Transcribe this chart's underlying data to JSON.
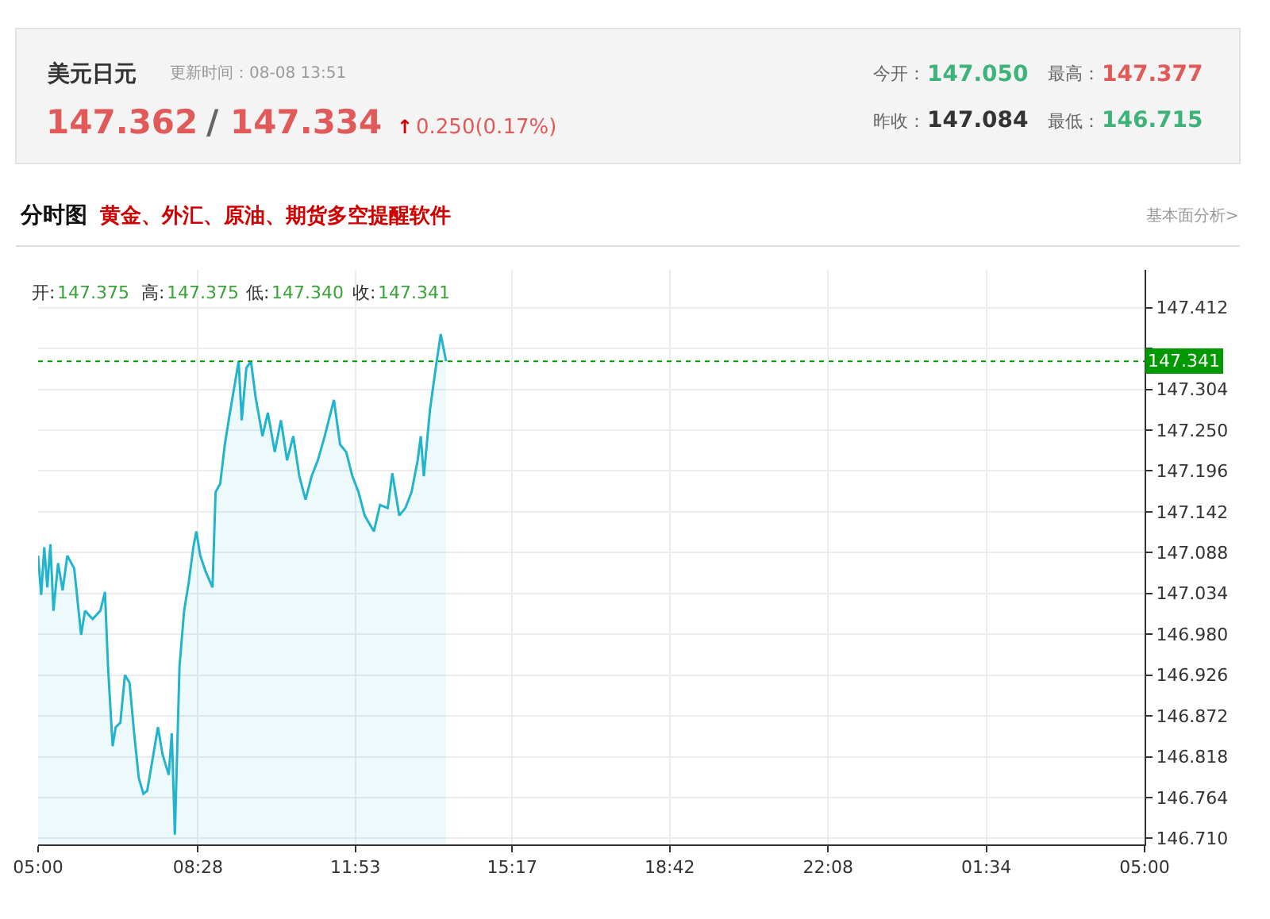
{
  "chart_data": {
    "type": "area",
    "title": "美元日元",
    "subtitle": "更新时间：08-08 13:51",
    "annotations": [
      "147.362",
      "/",
      "147.334",
      "↑",
      "0.250(0.17%)",
      "今开：",
      "147.050",
      "最高：",
      "147.377",
      "昨收：",
      "147.084",
      "最低：",
      "146.715",
      "分时图",
      "黄金、外汇、原油、期货多空提醒软件",
      "基本面分析>",
      "开:",
      "147.375",
      "高:",
      "147.375",
      "低:",
      "147.340",
      "收:",
      "147.341"
    ],
    "series": [
      {
        "color": "#22b4cc",
        "x": [
          "--08-08T05:00",
          "--08-08T05:04",
          "--08-08T05:08",
          "--08-08T05:12",
          "--08-08T05:16",
          "--08-08T05:20",
          "--08-08T05:26",
          "--08-08T05:32",
          "--08-08T05:38",
          "--08-08T05:47",
          "--08-08T05:56",
          "--08-08T06:01",
          "--08-08T06:11",
          "--08-08T06:21",
          "--08-08T06:27",
          "--08-08T06:31",
          "--08-08T06:37",
          "--08-08T06:41",
          "--08-08T06:47",
          "--08-08T06:53",
          "--08-08T06:59",
          "--08-08T07:05",
          "--08-08T07:11",
          "--08-08T07:17",
          "--08-08T07:22",
          "--08-08T07:30",
          "--08-08T07:36",
          "--08-08T07:42",
          "--08-08T07:50",
          "--08-08T07:54",
          "--08-08T07:58",
          "--08-08T08:04",
          "--08-08T08:10",
          "--08-08T08:16",
          "--08-08T08:22",
          "--08-08T08:26",
          "--08-08T08:31",
          "--08-08T08:38",
          "--08-08T08:47",
          "--08-08T08:51",
          "--08-08T08:57",
          "--08-08T09:03",
          "--08-08T09:09",
          "--08-08T09:21",
          "--08-08T09:25",
          "--08-08T09:31",
          "--08-08T09:37",
          "--08-08T09:43",
          "--08-08T09:52",
          "--08-08T09:59",
          "--08-08T10:08",
          "--08-08T10:16",
          "--08-08T10:24",
          "--08-08T10:32",
          "--08-08T10:40",
          "--08-08T10:48",
          "--08-08T10:56",
          "--08-08T11:04",
          "--08-08T11:13",
          "--08-08T11:25",
          "--08-08T11:33",
          "--08-08T11:41",
          "--08-08T11:49",
          "--08-08T11:57",
          "--08-08T12:05",
          "--08-08T12:17",
          "--08-08T12:25",
          "--08-08T12:35",
          "--08-08T12:41",
          "--08-08T12:50",
          "--08-08T12:58",
          "--08-08T13:06",
          "--08-08T13:14",
          "--08-08T13:18",
          "--08-08T13:22",
          "--08-08T13:30",
          "--08-08T13:38",
          "--08-08T13:44",
          "--08-08T13:51"
        ],
        "values": [
          147.084,
          147.032,
          147.095,
          147.042,
          147.099,
          147.011,
          147.074,
          147.038,
          147.084,
          147.067,
          146.979,
          147.011,
          147.0,
          147.011,
          147.036,
          146.937,
          146.832,
          146.857,
          146.863,
          146.926,
          146.916,
          146.849,
          146.79,
          146.769,
          146.773,
          146.821,
          146.857,
          146.821,
          146.794,
          146.849,
          146.715,
          146.937,
          147.011,
          147.048,
          147.095,
          147.116,
          147.084,
          147.063,
          147.042,
          147.168,
          147.179,
          147.231,
          147.269,
          147.341,
          147.263,
          147.332,
          147.341,
          147.294,
          147.242,
          147.273,
          147.221,
          147.263,
          147.21,
          147.242,
          147.189,
          147.158,
          147.189,
          147.21,
          147.242,
          147.29,
          147.231,
          147.221,
          147.189,
          147.168,
          147.137,
          147.116,
          147.151,
          147.147,
          147.193,
          147.137,
          147.147,
          147.168,
          147.21,
          147.242,
          147.189,
          147.277,
          147.336,
          147.377,
          147.341
        ]
      }
    ],
    "xlim": [
      "--08-08T05:00",
      "--08-09T05:00"
    ],
    "xticks": [
      {
        "value": "--08-08T05:00",
        "label": "05:00"
      },
      {
        "value": "--08-08T08:28",
        "label": "08:28"
      },
      {
        "value": "--08-08T11:53",
        "label": "11:53"
      },
      {
        "value": "--08-08T15:17",
        "label": "15:17"
      },
      {
        "value": "--08-08T18:42",
        "label": "18:42"
      },
      {
        "value": "--08-08T22:08",
        "label": "22:08"
      },
      {
        "value": "--08-09T01:34",
        "label": "01:34"
      },
      {
        "value": "--08-09T05:00",
        "label": "05:00"
      }
    ],
    "ylim": [
      146.702,
      147.462
    ],
    "yticks": [
      {
        "value": 146.71,
        "label": "146.710"
      },
      146.764,
      146.818,
      146.872,
      146.926,
      {
        "value": 146.98,
        "label": "146.980"
      },
      147.034,
      147.088,
      147.142,
      147.196,
      {
        "value": 147.25,
        "label": "147.250"
      },
      147.304,
      {
        "value": 147.358,
        "label": null
      },
      147.412
    ],
    "ref_lines": [
      {
        "axis": "y",
        "value": 147.341,
        "label": "147.341",
        "color": "#009900",
        "line_style": "dotted"
      }
    ],
    "grid": true,
    "legend": false,
    "marker": "none",
    "line_style": "solid"
  }
}
